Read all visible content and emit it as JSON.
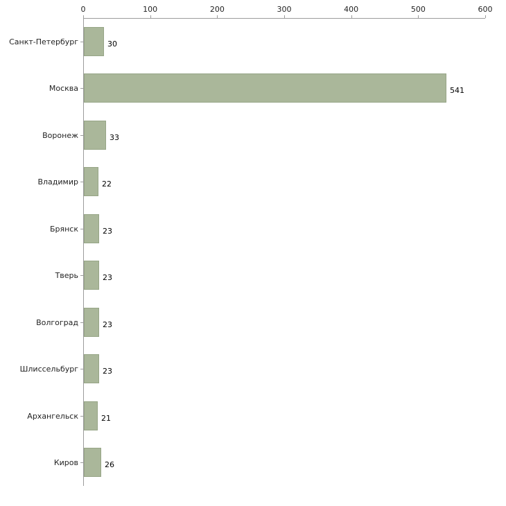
{
  "chart_data": {
    "type": "bar",
    "orientation": "horizontal",
    "title": "",
    "xlabel": "",
    "ylabel": "",
    "categories": [
      "Санкт-Петербург",
      "Москва",
      "Воронеж",
      "Владимир",
      "Брянск",
      "Тверь",
      "Волгоград",
      "Шлиссельбург",
      "Архангельск",
      "Киров"
    ],
    "values": [
      30,
      541,
      33,
      22,
      23,
      23,
      23,
      23,
      21,
      26
    ],
    "x_ticks": [
      0,
      100,
      200,
      300,
      400,
      500,
      600
    ],
    "xlim": [
      0,
      600
    ],
    "grid": false,
    "legend": false,
    "bar_color": "#aab79a",
    "bar_border_color": "#96a586",
    "axis_color": "#9b9b9b",
    "text_color": "#222222"
  }
}
